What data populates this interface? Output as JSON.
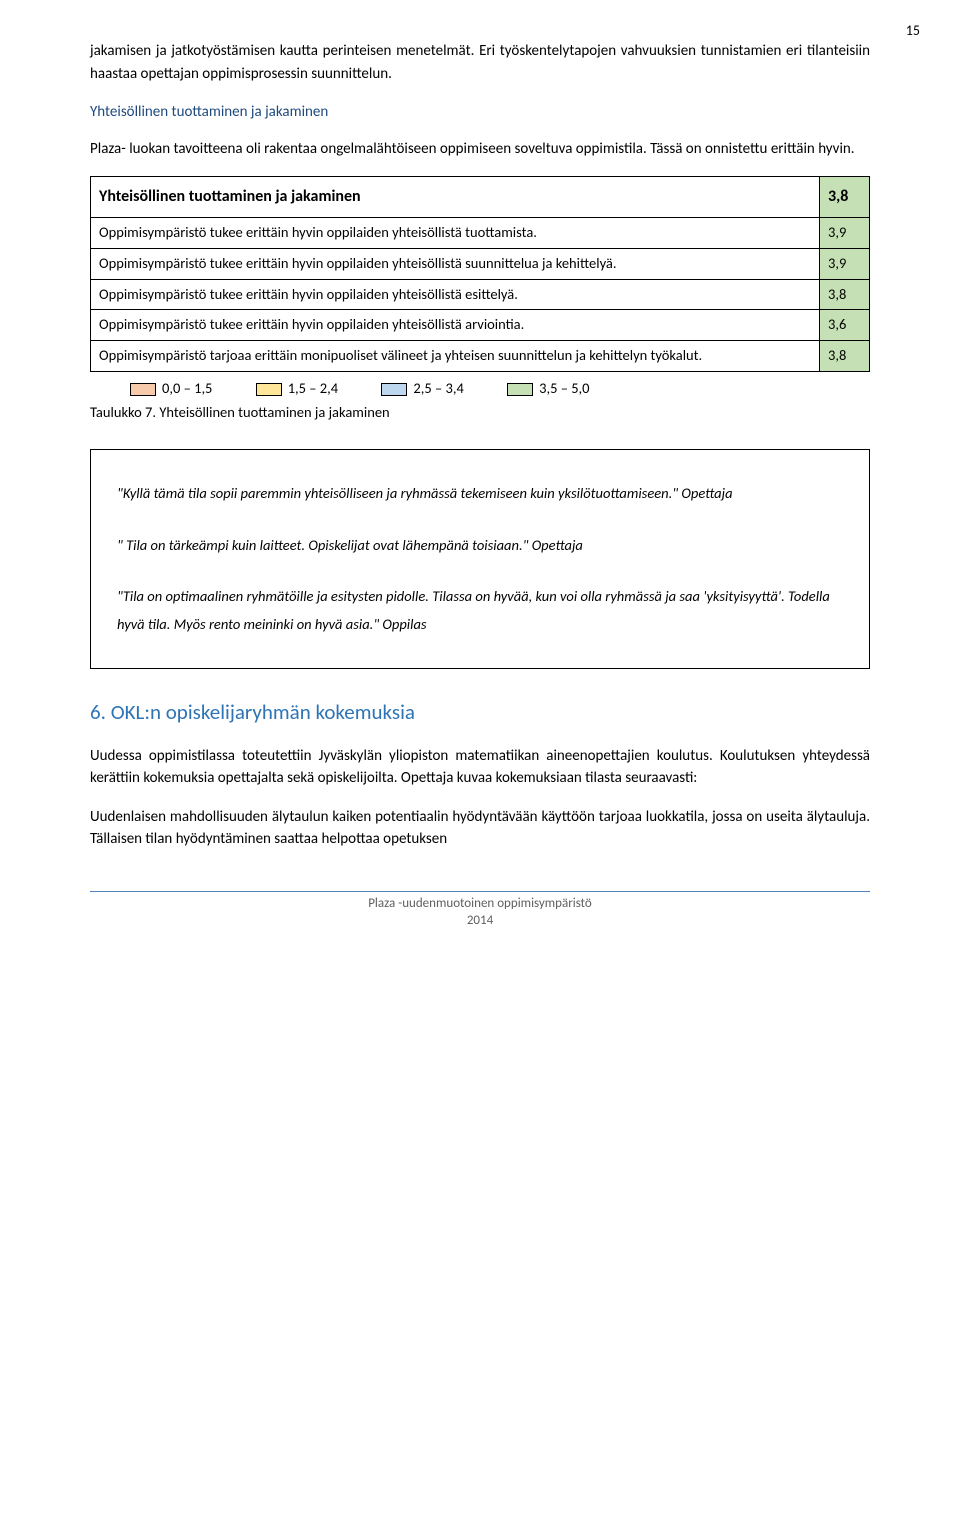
{
  "page_number": "15",
  "intro_paragraph": "jakamisen ja jatkotyöstämisen kautta perinteisen menetelmät. Eri työskentelytapojen vahvuuksien tunnistamien eri tilanteisiin haastaa opettajan oppimisprosessin suunnittelun.",
  "subheading1": "Yhteisöllinen tuottaminen ja jakaminen",
  "para2": "Plaza- luokan tavoitteena oli rakentaa ongelmalähtöiseen oppimiseen soveltuva oppimistila. Tässä on onnistettu erittäin hyvin.",
  "table": {
    "header": {
      "label": "Yhteisöllinen tuottaminen ja jakaminen",
      "value": "3,8"
    },
    "rows": [
      {
        "label": "Oppimisympäristö tukee erittäin hyvin oppilaiden yhteisöllistä tuottamista.",
        "value": "3,9"
      },
      {
        "label": "Oppimisympäristö tukee erittäin hyvin oppilaiden yhteisöllistä suunnittelua ja kehittelyä.",
        "value": "3,9"
      },
      {
        "label": "Oppimisympäristö tukee erittäin hyvin oppilaiden yhteisöllistä esittelyä.",
        "value": "3,8"
      },
      {
        "label": "Oppimisympäristö tukee erittäin hyvin oppilaiden yhteisöllistä arviointia.",
        "value": "3,6"
      },
      {
        "label": "Oppimisympäristö tarjoaa erittäin monipuoliset välineet ja yhteisen suunnittelun ja kehittelyn työkalut.",
        "value": "3,8"
      }
    ],
    "value_bg": "#c5e0b4"
  },
  "legend": [
    {
      "range": "0,0 – 1,5",
      "color": "#f7caac"
    },
    {
      "range": "1,5 – 2,4",
      "color": "#ffe699"
    },
    {
      "range": "2,5 – 3,4",
      "color": "#bdd7ee"
    },
    {
      "range": "3,5 – 5,0",
      "color": "#c5e0b4"
    }
  ],
  "caption": "Taulukko 7. Yhteisöllinen tuottaminen ja jakaminen",
  "quotes": [
    "\"Kyllä tämä tila sopii paremmin yhteisölliseen ja ryhmässä tekemiseen kuin yksilötuottamiseen.\" Opettaja",
    "\" Tila on tärkeämpi kuin laitteet. Opiskelijat ovat lähempänä toisiaan.\" Opettaja",
    "\"Tila on optimaalinen ryhmätöille ja esitysten pidolle. Tilassa on hyvää, kun voi olla ryhmässä ja saa 'yksityisyyttä'. Todella hyvä tila. Myös rento meininki on hyvä asia.\" Oppilas"
  ],
  "section6_heading": "6.  OKL:n opiskelijaryhmän kokemuksia",
  "para3": "Uudessa oppimistilassa toteutettiin Jyväskylän yliopiston matematiikan aineenopettajien koulutus. Koulutuksen yhteydessä kerättiin kokemuksia opettajalta sekä opiskelijoilta. Opettaja kuvaa kokemuksiaan tilasta seuraavasti:",
  "para4": "Uudenlaisen mahdollisuuden älytaulun kaiken potentiaalin hyödyntävään käyttöön tarjoaa luokkatila, jossa on useita älytauluja. Tällaisen tilan hyödyntäminen saattaa helpottaa opetuksen",
  "footer_line1": "Plaza -uudenmuotoinen oppimisympäristö",
  "footer_line2": "2014"
}
